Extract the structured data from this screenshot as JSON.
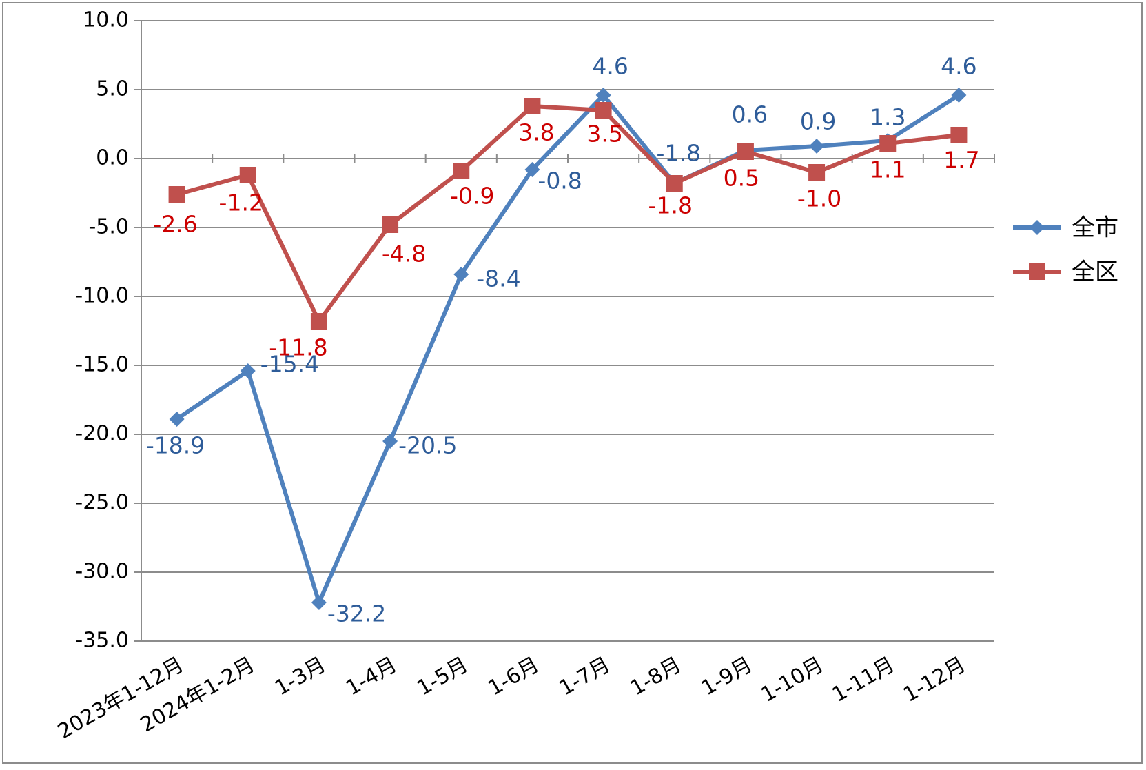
{
  "chart_data": {
    "type": "line",
    "title": "",
    "xlabel": "",
    "ylabel": "",
    "categories": [
      "2023年1-12月",
      "2024年1-2月",
      "1-3月",
      "1-4月",
      "1-5月",
      "1-6月",
      "1-7月",
      "1-8月",
      "1-9月",
      "1-10月",
      "1-11月",
      "1-12月"
    ],
    "ylim": [
      -35.0,
      10.0
    ],
    "yticks": [
      "10.0",
      "5.0",
      "0.0",
      "-5.0",
      "-10.0",
      "-15.0",
      "-20.0",
      "-25.0",
      "-30.0",
      "-35.0"
    ],
    "ytick_values": [
      10,
      5,
      0,
      -5,
      -10,
      -15,
      -20,
      -25,
      -30,
      -35
    ],
    "grid": true,
    "legend_position": "right",
    "series": [
      {
        "name": "全市",
        "color": "#4f81bd",
        "label_color": "#2e5c99",
        "marker": "diamond",
        "values": [
          -18.9,
          -15.4,
          -32.2,
          -20.5,
          -8.4,
          -0.8,
          4.6,
          -1.8,
          0.6,
          0.9,
          1.3,
          4.6
        ],
        "labels": [
          "-18.9",
          "-15.4",
          "-32.2",
          "-20.5",
          "-8.4",
          "-0.8",
          "4.6",
          "-1.8",
          "0.6",
          "0.9",
          "1.3",
          "4.6"
        ]
      },
      {
        "name": "全区",
        "color": "#c0504d",
        "label_color": "#cc0000",
        "marker": "square",
        "values": [
          -2.6,
          -1.2,
          -11.8,
          -4.8,
          -0.9,
          3.8,
          3.5,
          -1.8,
          0.5,
          -1.0,
          1.1,
          1.7
        ],
        "labels": [
          "-2.6",
          "-1.2",
          "-11.8",
          "-4.8",
          "-0.9",
          "3.8",
          "3.5",
          "-1.8",
          "0.5",
          "-1.0",
          "1.1",
          "1.7"
        ]
      }
    ]
  }
}
